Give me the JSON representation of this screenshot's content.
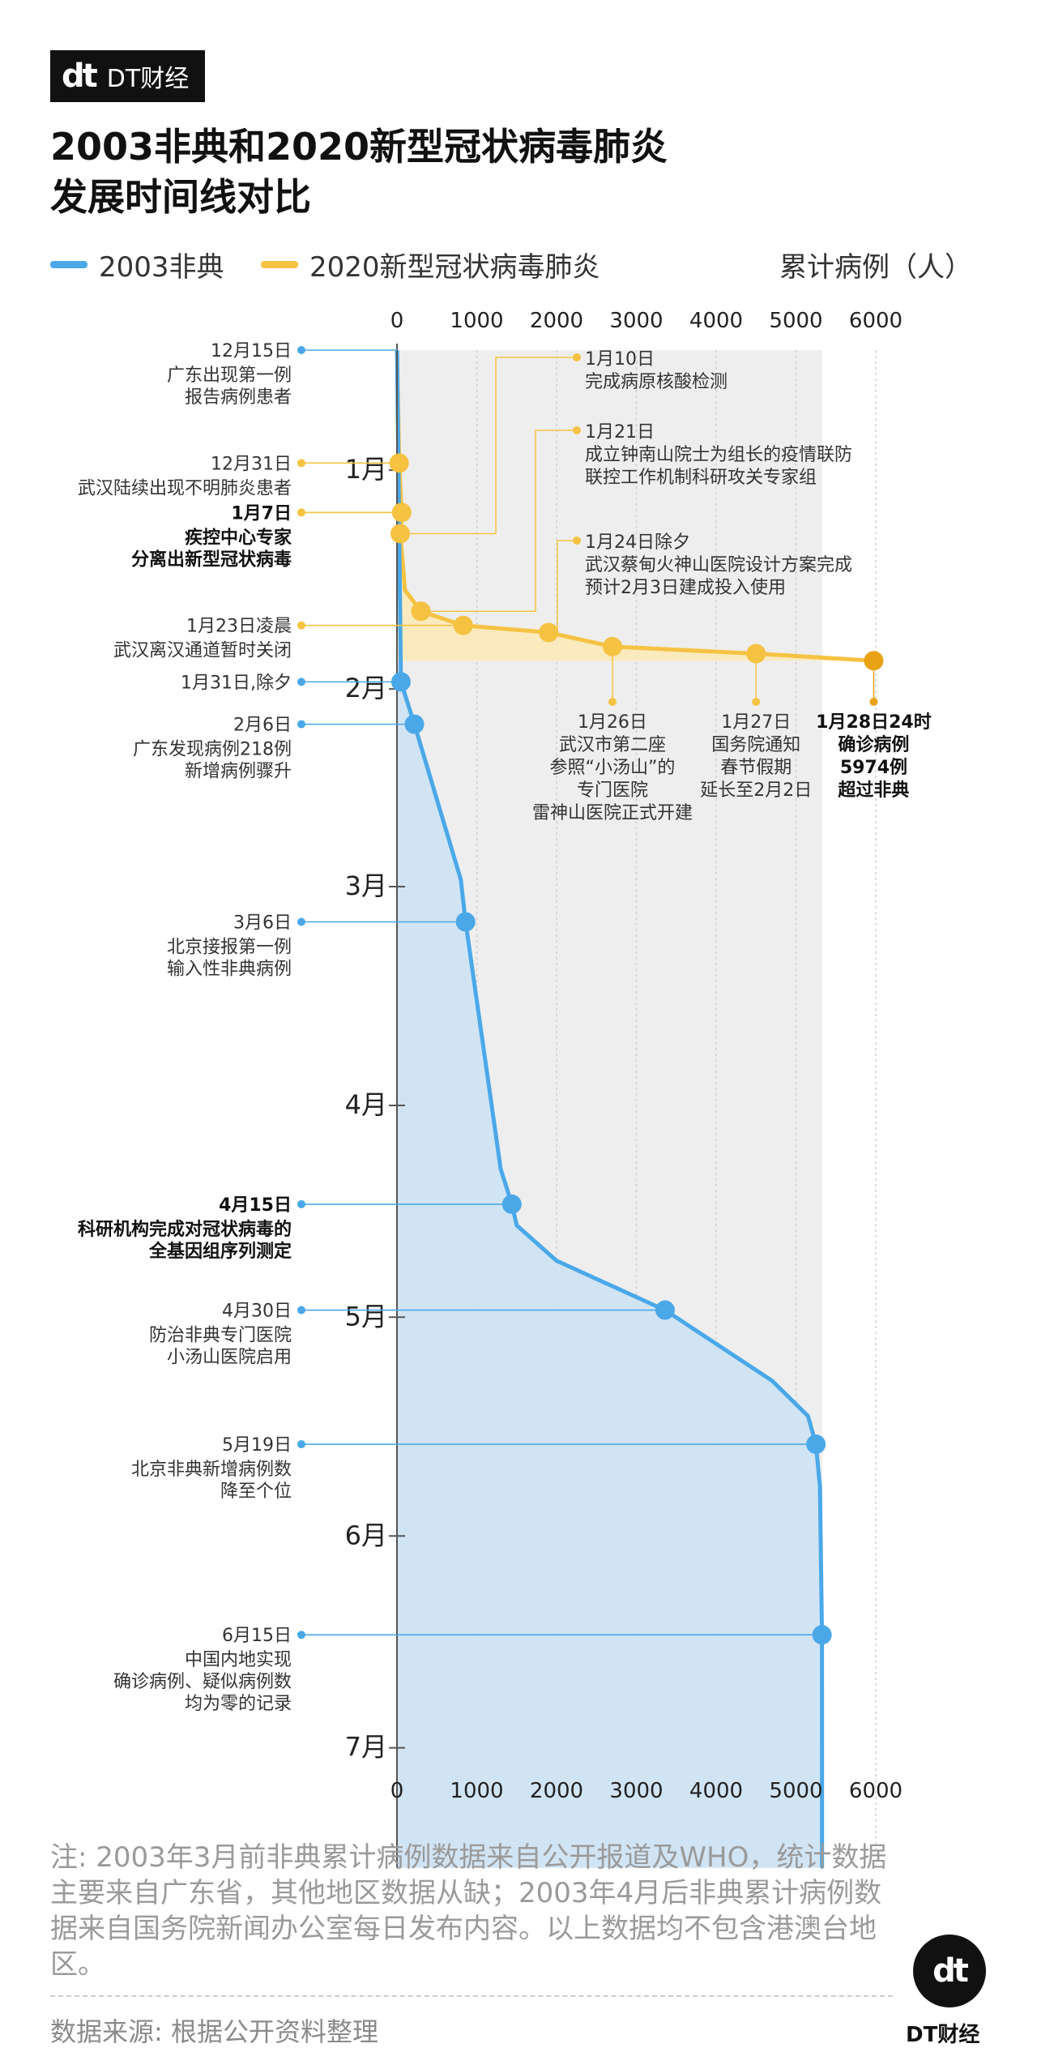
{
  "brand": {
    "logo": "dt",
    "name": "DT财经"
  },
  "title": {
    "line1": "2003非典和2020新型冠状病毒肺炎",
    "line2": "发展时间线对比"
  },
  "legend": {
    "sars": "2003非典",
    "ncov": "2020新型冠状病毒肺炎",
    "unit": "累计病例（人）"
  },
  "colors": {
    "sars": "#4aa8e8",
    "sars_fill": "#cfe3f3",
    "ncov": "#f5c242",
    "ncov_dark": "#e8a214",
    "ncov_fill": "#fbe9b7",
    "bg": "#eeeeee"
  },
  "chart_data": {
    "type": "line",
    "xlim": [
      0,
      6000
    ],
    "xticks": [
      "0",
      "1000",
      "2000",
      "3000",
      "4000",
      "5000",
      "6000"
    ],
    "month_labels": [
      "1月",
      "2月",
      "3月",
      "4月",
      "5月",
      "6月",
      "7月"
    ],
    "series": [
      {
        "name": "2003非典",
        "points": [
          {
            "date": "2002-12-15",
            "value": 1
          },
          {
            "date": "2003-01-31",
            "value": 50
          },
          {
            "date": "2003-02-06",
            "value": 218
          },
          {
            "date": "2003-02-28",
            "value": 800
          },
          {
            "date": "2003-03-06",
            "value": 860
          },
          {
            "date": "2003-04-10",
            "value": 1300
          },
          {
            "date": "2003-04-15",
            "value": 1440
          },
          {
            "date": "2003-04-18",
            "value": 1500
          },
          {
            "date": "2003-04-23",
            "value": 2000
          },
          {
            "date": "2003-04-30",
            "value": 3360
          },
          {
            "date": "2003-05-10",
            "value": 4700
          },
          {
            "date": "2003-05-15",
            "value": 5150
          },
          {
            "date": "2003-05-19",
            "value": 5250
          },
          {
            "date": "2003-05-25",
            "value": 5300
          },
          {
            "date": "2003-06-15",
            "value": 5326
          },
          {
            "date": "2003-07-18",
            "value": 5327
          }
        ]
      },
      {
        "name": "2020新型冠状病毒肺炎",
        "points": [
          {
            "date": "2019-12-15",
            "value": 0
          },
          {
            "date": "2019-12-31",
            "value": 27
          },
          {
            "date": "2020-01-07",
            "value": 59
          },
          {
            "date": "2020-01-10",
            "value": 41
          },
          {
            "date": "2020-01-18",
            "value": 100
          },
          {
            "date": "2020-01-21",
            "value": 300
          },
          {
            "date": "2020-01-23",
            "value": 830
          },
          {
            "date": "2020-01-24",
            "value": 1900
          },
          {
            "date": "2020-01-26",
            "value": 2700
          },
          {
            "date": "2020-01-27",
            "value": 4500
          },
          {
            "date": "2020-01-28",
            "value": 5974
          }
        ]
      }
    ]
  },
  "left_events": [
    {
      "date": "12月15日",
      "lines": [
        "广东出现第一例",
        "报告病例患者"
      ],
      "bold": false,
      "series": "sars",
      "y": 0
    },
    {
      "date": "12月31日",
      "lines": [
        "武汉陆续出现不明肺炎患者"
      ],
      "bold": false,
      "series": "ncov",
      "y": 27
    },
    {
      "date": "1月7日",
      "lines": [
        "疾控中心专家",
        "分离出新型冠状病毒"
      ],
      "bold": true,
      "series": "ncov",
      "y": 59
    },
    {
      "date": "1月23日凌晨",
      "lines": [
        "武汉离汉通道暂时关闭"
      ],
      "bold": false,
      "series": "ncov",
      "y": 830
    },
    {
      "date": "1月31日,除夕",
      "lines": [],
      "bold": false,
      "series": "sars",
      "y": 50
    },
    {
      "date": "2月6日",
      "lines": [
        "广东发现病例218例",
        "新增病例骤升"
      ],
      "bold": false,
      "series": "sars",
      "y": 218
    },
    {
      "date": "3月6日",
      "lines": [
        "北京接报第一例",
        "输入性非典病例"
      ],
      "bold": false,
      "series": "sars",
      "y": 860
    },
    {
      "date": "4月15日",
      "lines": [
        "科研机构完成对冠状病毒的",
        "全基因组序列测定"
      ],
      "bold": true,
      "series": "sars",
      "y": 1440
    },
    {
      "date": "4月30日",
      "lines": [
        "防治非典专门医院",
        "小汤山医院启用"
      ],
      "bold": false,
      "series": "sars",
      "y": 3360
    },
    {
      "date": "5月19日",
      "lines": [
        "北京非典新增病例数",
        "降至个位"
      ],
      "bold": false,
      "series": "sars",
      "y": 5250
    },
    {
      "date": "6月15日",
      "lines": [
        "中国内地实现",
        "确诊病例、疑似病例数",
        "均为零的记录"
      ],
      "bold": false,
      "series": "sars",
      "y": 5326
    }
  ],
  "top_events": [
    {
      "lines": [
        "1月10日",
        "完成病原核酸检测"
      ],
      "y": 41
    },
    {
      "lines": [
        "1月21日",
        "成立钟南山院士为组长的疫情联防",
        "联控工作机制科研攻关专家组"
      ],
      "y": 300
    },
    {
      "lines": [
        "1月24日除夕",
        "武汉蔡甸火神山医院设计方案完成",
        "预计2月3日建成投入使用"
      ],
      "y": 1900
    }
  ],
  "bottom_events": [
    {
      "lines": [
        "1月26日",
        "武汉市第二座",
        "参照“小汤山”的",
        "专门医院",
        "雷神山医院正式开建"
      ],
      "bold": false,
      "y": 2700
    },
    {
      "lines": [
        "1月27日",
        "国务院通知",
        "春节假期",
        "延长至2月2日"
      ],
      "bold": false,
      "y": 4500
    },
    {
      "lines": [
        "1月28日24时",
        "确诊病例",
        "5974例",
        "超过非典"
      ],
      "bold": true,
      "y": 5974
    }
  ],
  "note": "注: 2003年3月前非典累计病例数据来自公开报道及WHO，统计数据主要来自广东省，其他地区数据从缺；2003年4月后非典累计病例数据来自国务院新闻办公室每日发布内容。以上数据均不包含港澳台地区。",
  "source": "数据来源: 根据公开资料整理",
  "footer_brand": {
    "logo": "dt",
    "name": "DT财经"
  }
}
